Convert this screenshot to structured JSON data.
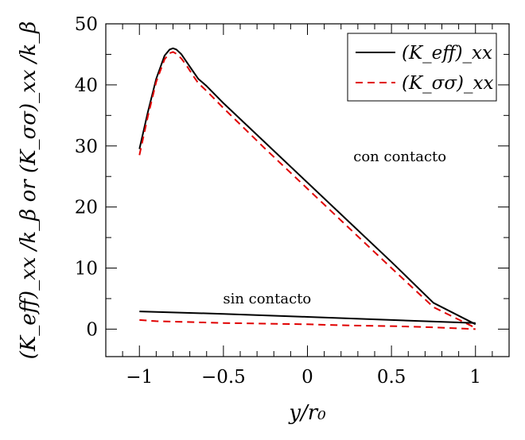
{
  "chart_data": {
    "type": "line",
    "title": "",
    "xlabel": "y/r₀",
    "ylabel": "(K_eff)_xx /k_β or (K_σσ)_xx /k_β",
    "xlim": [
      -1.2,
      1.2
    ],
    "ylim": [
      -4.5,
      50
    ],
    "xticks": [
      -1,
      -0.5,
      0,
      0.5,
      1
    ],
    "xtick_labels": [
      "−1",
      "−0.5",
      "0",
      "0.5",
      "1"
    ],
    "yticks": [
      0,
      10,
      20,
      30,
      40,
      50
    ],
    "ytick_labels": [
      "0",
      "10",
      "20",
      "30",
      "40",
      "50"
    ],
    "grid": false,
    "legend": {
      "position": "top-right",
      "entries": [
        {
          "label": "(K_eff)_xx",
          "color": "#000000",
          "style": "solid"
        },
        {
          "label": "(K_σσ)_xx",
          "color": "#e00000",
          "style": "dashed"
        }
      ]
    },
    "series": [
      {
        "name": "(K_eff)_xx con contacto",
        "color": "#000000",
        "style": "solid",
        "x": [
          -1.0,
          -0.95,
          -0.9,
          -0.85,
          -0.82,
          -0.8,
          -0.78,
          -0.75,
          -0.72,
          -0.68,
          -0.65,
          -0.6,
          -0.5,
          -0.25,
          0.0,
          0.25,
          0.5,
          0.75,
          1.0
        ],
        "y": [
          29.5,
          35.5,
          41.0,
          44.8,
          45.8,
          46.0,
          45.8,
          45.0,
          43.8,
          42.2,
          41.0,
          39.8,
          37.0,
          30.5,
          24.0,
          17.5,
          11.0,
          4.3,
          0.8
        ]
      },
      {
        "name": "(K_σσ)_xx con contacto",
        "color": "#e00000",
        "style": "dashed",
        "x": [
          -1.0,
          -0.95,
          -0.9,
          -0.85,
          -0.82,
          -0.8,
          -0.78,
          -0.75,
          -0.72,
          -0.68,
          -0.65,
          -0.6,
          -0.5,
          -0.25,
          0.0,
          0.25,
          0.5,
          0.75,
          1.0
        ],
        "y": [
          28.5,
          34.8,
          40.5,
          44.2,
          45.2,
          45.4,
          45.1,
          44.3,
          43.2,
          41.5,
          40.3,
          39.0,
          36.2,
          29.5,
          23.0,
          16.5,
          10.0,
          3.6,
          0.2
        ]
      },
      {
        "name": "(K_eff)_xx sin contacto",
        "color": "#000000",
        "style": "solid",
        "x": [
          -1.0,
          -0.5,
          0.0,
          0.5,
          1.0
        ],
        "y": [
          2.9,
          2.5,
          2.0,
          1.5,
          1.0
        ]
      },
      {
        "name": "(K_σσ)_xx sin contacto",
        "color": "#e00000",
        "style": "dashed",
        "x": [
          -1.0,
          -0.9,
          -0.75,
          -0.5,
          -0.25,
          0.0,
          0.25,
          0.5,
          0.75,
          1.0
        ],
        "y": [
          1.5,
          1.3,
          1.2,
          1.0,
          0.9,
          0.8,
          0.6,
          0.5,
          0.3,
          0.0
        ]
      }
    ],
    "annotations": [
      {
        "text": "con contacto",
        "x": 0.55,
        "y": 27.5
      },
      {
        "text": "sin contacto",
        "x": -0.24,
        "y": 4.2
      }
    ]
  }
}
